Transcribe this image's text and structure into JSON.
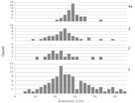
{
  "chart_data": [
    {
      "type": "bar",
      "title": "4a",
      "ylabel": "Count",
      "bins": [
        5,
        6,
        7,
        8,
        9,
        10,
        11,
        12,
        13,
        14,
        15,
        16,
        17,
        18,
        19,
        20,
        21,
        22,
        23,
        24,
        25,
        26,
        27,
        28,
        29,
        30,
        31,
        32,
        33,
        34,
        35
      ],
      "values": [
        0,
        0,
        0,
        0,
        0,
        0,
        0,
        0,
        0,
        0,
        1,
        2,
        4,
        7,
        11,
        4,
        3,
        3,
        0,
        0,
        0,
        1,
        0,
        0,
        0,
        0,
        0,
        0,
        0,
        0
      ],
      "color": "#888888",
      "xlim": [
        5,
        33
      ],
      "ylim": [
        0,
        12
      ],
      "yticks": [
        2,
        4,
        6,
        8,
        10,
        12
      ],
      "grid": true,
      "tick_labels": "y"
    },
    {
      "type": "bar",
      "title": "3",
      "bins": [
        5,
        6,
        7,
        8,
        9,
        10,
        11,
        12,
        13,
        14,
        15,
        16,
        17,
        18,
        19,
        20,
        21,
        22,
        23,
        24,
        25,
        26,
        27,
        28,
        29,
        30,
        31,
        32,
        33,
        34,
        35
      ],
      "values": [
        0,
        0,
        0,
        0,
        1,
        0,
        1,
        2,
        3,
        3,
        4,
        6,
        8,
        5,
        3,
        2,
        1,
        0,
        2,
        0,
        0,
        1,
        0,
        0,
        1,
        0,
        0,
        0,
        0,
        0
      ],
      "color": "#888888",
      "xlim": [
        5,
        33
      ],
      "ylim": [
        0,
        10
      ],
      "yticks": [
        2,
        4,
        6,
        8,
        10
      ],
      "grid": true,
      "tick_labels": "y"
    },
    {
      "type": "bar",
      "title": "2",
      "bins": [
        5,
        6,
        7,
        8,
        9,
        10,
        11,
        12,
        13,
        14,
        15,
        16,
        17,
        18,
        19,
        20,
        21,
        22,
        23,
        24,
        25,
        26,
        27,
        28,
        29,
        30,
        31,
        32,
        33,
        34,
        35
      ],
      "values": [
        0,
        0,
        0,
        0,
        0,
        1,
        0,
        1,
        2,
        3,
        2,
        3,
        1,
        2,
        1,
        1,
        0,
        0,
        0,
        1,
        0,
        1,
        0,
        0,
        0,
        0,
        0,
        0,
        0,
        0
      ],
      "color": "#888888",
      "xlim": [
        5,
        33
      ],
      "ylim": [
        0,
        5
      ],
      "yticks": [
        1,
        2,
        3,
        4,
        5
      ],
      "grid": true,
      "tick_labels": "y"
    },
    {
      "type": "bar",
      "title": "1",
      "xlabel": "Diameter (cm)",
      "bins": [
        5,
        6,
        7,
        8,
        9,
        10,
        11,
        12,
        13,
        14,
        15,
        16,
        17,
        18,
        19,
        20,
        21,
        22,
        23,
        24,
        25,
        26,
        27,
        28,
        29,
        30,
        31,
        32,
        33,
        34,
        35
      ],
      "values": [
        0,
        0,
        1,
        2,
        1,
        2,
        3,
        4,
        5,
        7,
        8,
        13,
        9,
        9,
        8,
        2,
        6,
        5,
        4,
        3,
        2,
        3,
        1,
        2,
        3,
        1,
        2,
        1,
        0,
        1
      ],
      "color": "#888888",
      "xlim": [
        5,
        33
      ],
      "xticks": [
        5,
        10,
        15,
        20,
        25,
        30
      ],
      "ylim": [
        0,
        14
      ],
      "yticks": [
        2,
        4,
        6,
        8,
        10,
        12,
        14
      ],
      "grid": true
    }
  ]
}
